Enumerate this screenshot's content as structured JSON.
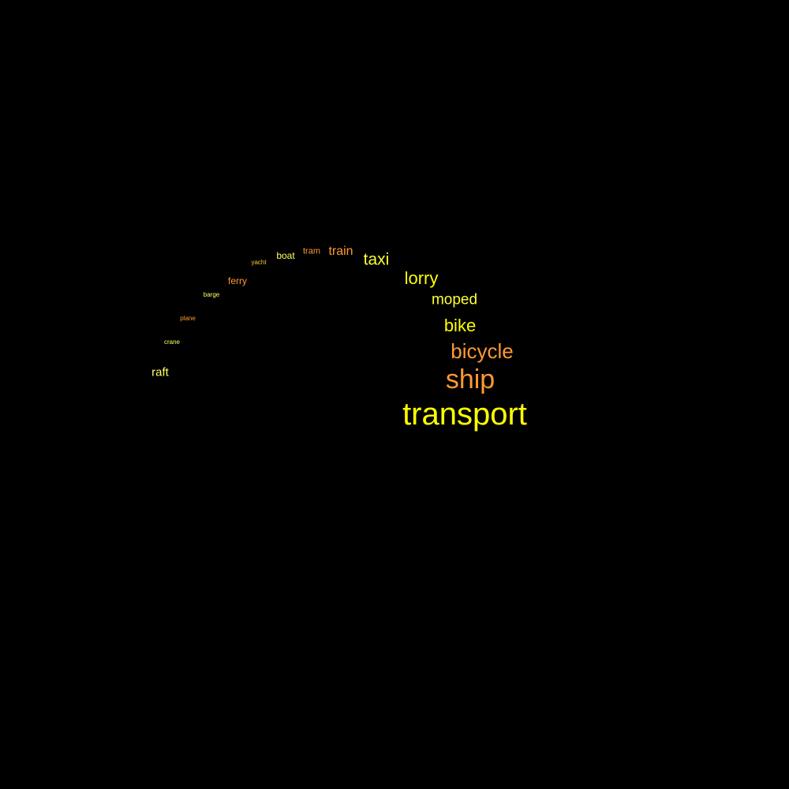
{
  "background": "#000000",
  "palette": {
    "yellow": "#ffff00",
    "orange": "#ff9933",
    "light_yellow": "#ffff66",
    "gold": "#ffcc33"
  },
  "words": {
    "transport": {
      "text": "transport",
      "color": "#ffff00"
    },
    "ship": {
      "text": "ship",
      "color": "#ff9933"
    },
    "bicycle": {
      "text": "bicycle",
      "color": "#ff9933"
    },
    "bike": {
      "text": "bike",
      "color": "#ffff00"
    },
    "moped": {
      "text": "moped",
      "color": "#ffff33"
    },
    "lorry": {
      "text": "lorry",
      "color": "#ffff00"
    },
    "taxi": {
      "text": "taxi",
      "color": "#ffff33"
    },
    "train": {
      "text": "train",
      "color": "#ff9933"
    },
    "tram": {
      "text": "tram",
      "color": "#ff9933"
    },
    "boat": {
      "text": "boat",
      "color": "#ffff66"
    },
    "yacht": {
      "text": "yacht",
      "color": "#ffcc33"
    },
    "ferry": {
      "text": "ferry",
      "color": "#ff9933"
    },
    "barge": {
      "text": "barge",
      "color": "#ffff66"
    },
    "plane": {
      "text": "plane",
      "color": "#ff9933"
    },
    "crane": {
      "text": "crane",
      "color": "#ffff66"
    },
    "raft": {
      "text": "raft",
      "color": "#ffff66"
    }
  }
}
